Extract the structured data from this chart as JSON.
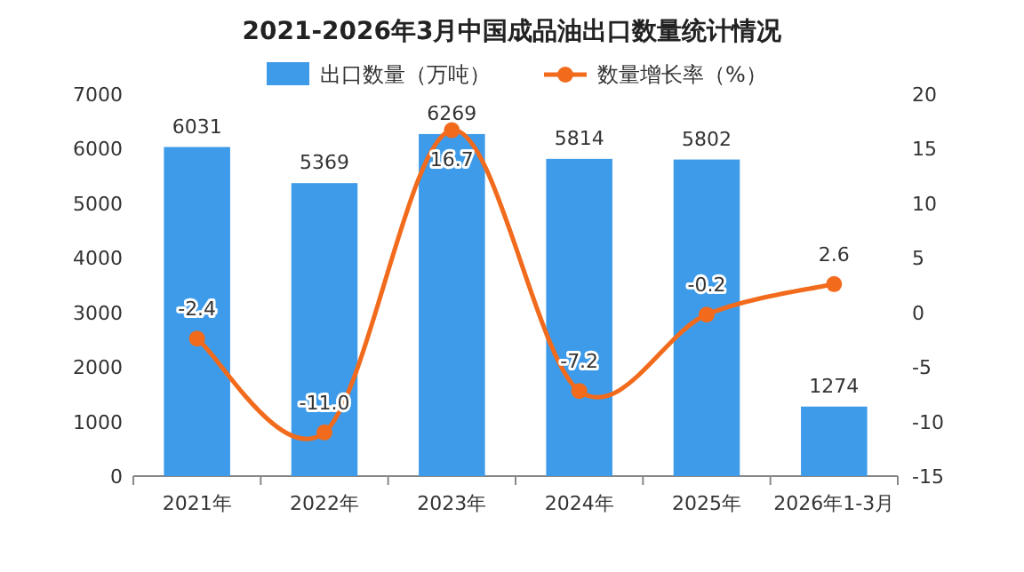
{
  "chart_data": {
    "type": "bar",
    "title": "2021-2026年3月中国成品油出口数量统计情况",
    "categories": [
      "2021年",
      "2022年",
      "2023年",
      "2024年",
      "2025年",
      "2026年1-3月"
    ],
    "series": [
      {
        "name": "出口数量（万吨）",
        "color": "#3d9be9",
        "values": [
          6031,
          5369,
          6269,
          5814,
          5802,
          1274
        ],
        "value_labels": [
          "6031",
          "5369",
          "6269",
          "5814",
          "5802",
          "1274"
        ]
      },
      {
        "name": "数量增长率（%）",
        "type": "line",
        "axis": "y2",
        "color": "#f26b1d",
        "values": [
          -2.4,
          -11.0,
          16.7,
          -7.2,
          -0.2,
          2.6
        ],
        "value_labels": [
          "-2.4",
          "-11.0",
          "16.7",
          "-7.2",
          "-0.2",
          "2.6"
        ]
      }
    ],
    "ylim": [
      0,
      7000
    ],
    "yticks": [
      0,
      1000,
      2000,
      3000,
      4000,
      5000,
      6000,
      7000
    ],
    "y2lim": [
      -15,
      20
    ],
    "y2ticks": [
      -15,
      -10,
      -5,
      0,
      5,
      10,
      15,
      20
    ],
    "legend": "top",
    "marker": "circle"
  }
}
